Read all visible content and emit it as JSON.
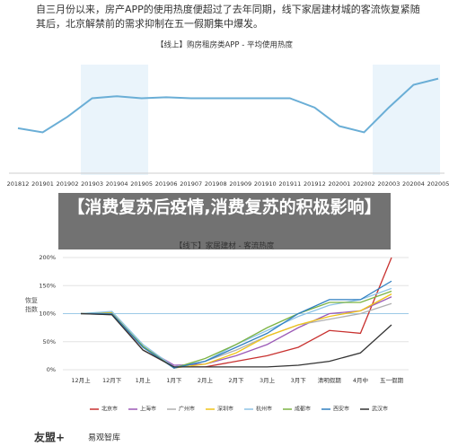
{
  "header": {
    "lines": [
      "自三月份以来，房产APP的使用热度便超过了去年同期，线下家居建材城的客流恢复紧随",
      "其后，北京解禁前的需求抑制在五一假期集中爆发。"
    ]
  },
  "overlay_title": "【消费复苏后疫情,消费复苏的积极影响】",
  "footer": {
    "left_logo": "友盟+",
    "right_logo": "易观智库"
  },
  "chart_data": [
    {
      "type": "line",
      "title": "【线上】购房租房类APP - 平均使用热度",
      "categories": [
        "201812",
        "201901",
        "201902",
        "201903",
        "201904",
        "201905",
        "201906",
        "201907",
        "201908",
        "201909",
        "201910",
        "201911",
        "201912",
        "202001",
        "202002",
        "202003",
        "202004",
        "202005"
      ],
      "values": [
        41,
        37,
        52,
        70,
        72,
        70,
        71,
        70,
        70,
        70,
        70,
        70,
        61,
        43,
        37,
        61,
        83,
        89
      ],
      "color": "#6aaed6",
      "ylim": [
        0,
        100
      ]
    },
    {
      "type": "line",
      "title": "【线下】家居建材 - 客流热度",
      "ylabel": "恢复指数",
      "categories": [
        "12月上",
        "12月下",
        "1月上",
        "1月下",
        "2月上",
        "2月下",
        "3月上",
        "3月下",
        "清明假期",
        "4月中",
        "五一假期"
      ],
      "ylim": [
        0,
        200
      ],
      "yticks": [
        {
          "value": 0,
          "label": "0%"
        },
        {
          "value": 50,
          "label": "50%"
        },
        {
          "value": 100,
          "label": "100%"
        },
        {
          "value": 150,
          "label": "150%"
        },
        {
          "value": 200,
          "label": "200%"
        }
      ],
      "grid": true,
      "reference_line": 100,
      "series": [
        {
          "name": "北京市",
          "color": "#c8312f",
          "values": [
            100,
            100,
            35,
            5,
            5,
            15,
            25,
            40,
            70,
            65,
            200
          ]
        },
        {
          "name": "上海市",
          "color": "#9b59b6",
          "values": [
            100,
            100,
            40,
            8,
            10,
            25,
            45,
            75,
            100,
            105,
            130
          ]
        },
        {
          "name": "广州市",
          "color": "#b0b0b0",
          "values": [
            100,
            98,
            35,
            5,
            15,
            35,
            60,
            80,
            90,
            100,
            118
          ]
        },
        {
          "name": "深圳市",
          "color": "#f0c419",
          "values": [
            100,
            102,
            40,
            3,
            10,
            30,
            60,
            80,
            95,
            105,
            135
          ]
        },
        {
          "name": "杭州市",
          "color": "#8ec3e6",
          "values": [
            100,
            104,
            45,
            5,
            15,
            45,
            70,
            95,
            115,
            125,
            145
          ]
        },
        {
          "name": "成都市",
          "color": "#7cb342",
          "values": [
            100,
            100,
            42,
            3,
            20,
            45,
            75,
            100,
            120,
            120,
            140
          ]
        },
        {
          "name": "西安市",
          "color": "#2f7fc1",
          "values": [
            100,
            100,
            40,
            3,
            15,
            40,
            65,
            100,
            125,
            125,
            158
          ]
        },
        {
          "name": "武汉市",
          "color": "#333333",
          "values": [
            100,
            98,
            35,
            5,
            5,
            5,
            5,
            8,
            15,
            30,
            80
          ]
        }
      ]
    }
  ]
}
